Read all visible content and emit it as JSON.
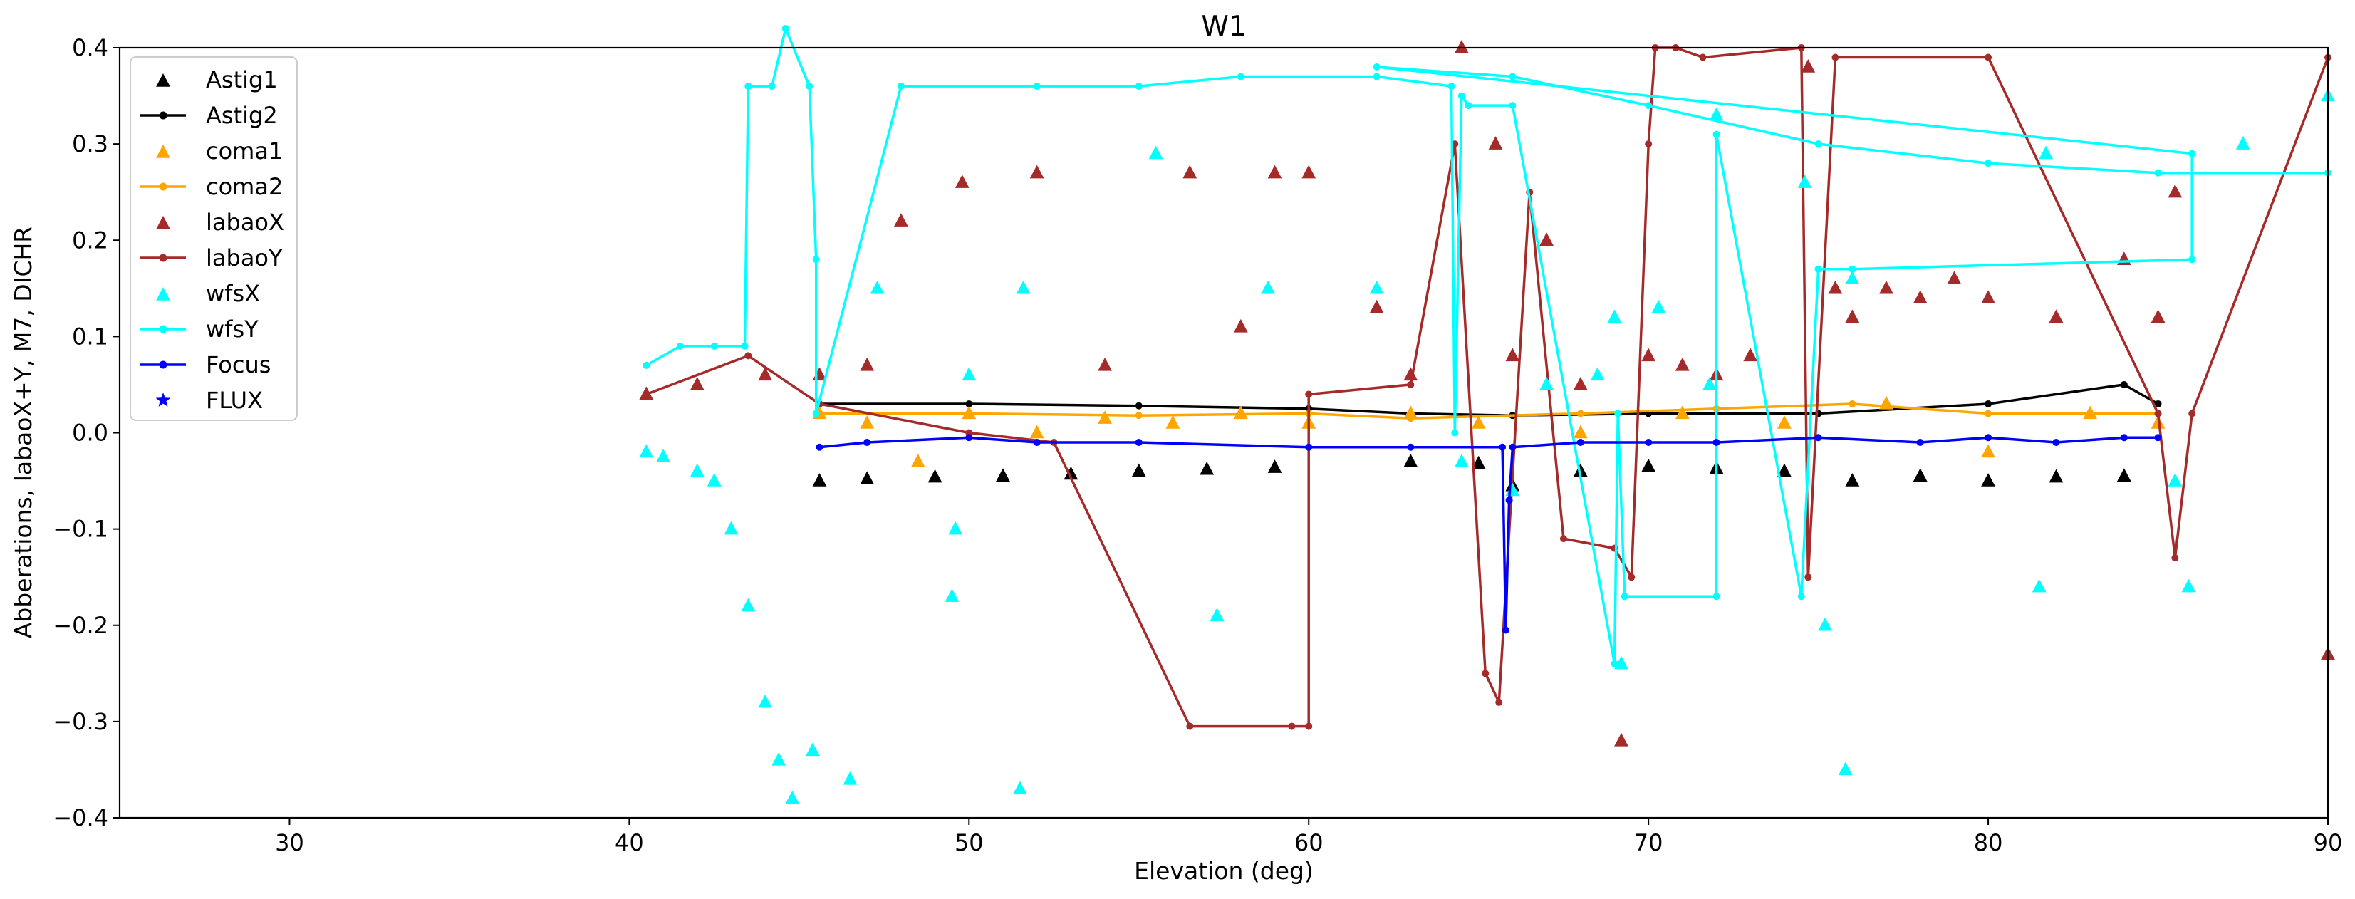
{
  "chart_data": {
    "type": "line",
    "title": "W1",
    "xlabel": "Elevation (deg)",
    "ylabel": "Abberations, labaoX+Y, M7, DICHR",
    "xlim": [
      25,
      90
    ],
    "ylim": [
      -0.4,
      0.4
    ],
    "x_ticks": [
      30,
      40,
      50,
      60,
      70,
      80,
      90
    ],
    "y_ticks": [
      0.4,
      0.3,
      0.2,
      0.1,
      0.0,
      -0.1,
      -0.2,
      -0.3,
      -0.4
    ],
    "x_tick_labels": [
      "30",
      "40",
      "50",
      "60",
      "70",
      "80",
      "90"
    ],
    "y_tick_labels": [
      "0.4",
      "0.3",
      "0.2",
      "0.1",
      "0.0",
      "−0.1",
      "−0.2",
      "−0.3",
      "−0.4"
    ],
    "legend_position": "top-left",
    "series": [
      {
        "name": "Astig1",
        "style": "marker",
        "marker": "triangle",
        "color": "#000000",
        "x": [
          45.6,
          47,
          49,
          51,
          53,
          55,
          57,
          59,
          63,
          65,
          66,
          68,
          70,
          72,
          74,
          76,
          78,
          80,
          82,
          84
        ],
        "y": [
          -0.05,
          -0.048,
          -0.046,
          -0.045,
          -0.043,
          -0.04,
          -0.038,
          -0.036,
          -0.03,
          -0.032,
          -0.055,
          -0.04,
          -0.035,
          -0.037,
          -0.04,
          -0.05,
          -0.045,
          -0.05,
          -0.046,
          -0.045
        ]
      },
      {
        "name": "Astig2",
        "style": "line",
        "marker": "dot",
        "color": "#000000",
        "x": [
          45.6,
          50,
          55,
          60,
          63,
          66,
          70,
          75,
          80,
          84,
          85
        ],
        "y": [
          0.03,
          0.03,
          0.028,
          0.025,
          0.02,
          0.018,
          0.02,
          0.02,
          0.03,
          0.05,
          0.03
        ]
      },
      {
        "name": "coma1",
        "style": "marker",
        "marker": "triangle",
        "color": "#FFA500",
        "x": [
          45.6,
          47,
          48.5,
          50,
          52,
          54,
          56,
          58,
          60,
          63,
          65,
          68,
          71,
          74,
          77,
          80,
          83,
          85
        ],
        "y": [
          0.02,
          0.01,
          -0.03,
          0.02,
          0.0,
          0.015,
          0.01,
          0.02,
          0.01,
          0.02,
          0.01,
          0.0,
          0.02,
          0.01,
          0.03,
          -0.02,
          0.02,
          0.01
        ]
      },
      {
        "name": "coma2",
        "style": "line",
        "marker": "dot",
        "color": "#FFA500",
        "x": [
          45.6,
          50,
          55,
          60,
          63,
          68,
          72,
          76,
          80,
          85
        ],
        "y": [
          0.02,
          0.02,
          0.018,
          0.02,
          0.015,
          0.02,
          0.025,
          0.03,
          0.02,
          0.02
        ]
      },
      {
        "name": "labaoX",
        "style": "marker",
        "marker": "triangle",
        "color": "#A52A2A",
        "x": [
          40.5,
          42,
          44,
          45.6,
          47,
          48,
          49.8,
          52,
          54,
          56.5,
          58,
          59,
          60,
          62,
          63,
          64.5,
          65.5,
          66,
          67,
          68,
          69.2,
          70,
          71,
          72,
          73,
          74.7,
          75.5,
          76,
          77,
          78,
          79,
          80,
          82,
          84,
          85,
          85.5,
          90
        ],
        "y": [
          0.04,
          0.05,
          0.06,
          0.06,
          0.07,
          0.22,
          0.26,
          0.27,
          0.07,
          0.27,
          0.11,
          0.27,
          0.27,
          0.13,
          0.06,
          0.4,
          0.3,
          0.08,
          0.2,
          0.05,
          -0.32,
          0.08,
          0.07,
          0.06,
          0.08,
          0.38,
          0.15,
          0.12,
          0.15,
          0.14,
          0.16,
          0.14,
          0.12,
          0.18,
          0.12,
          0.25,
          -0.23
        ]
      },
      {
        "name": "labaoY",
        "style": "line",
        "marker": "dot",
        "color": "#A52A2A",
        "x": [
          40.5,
          43.5,
          45.6,
          50,
          52.5,
          56.5,
          59.5,
          60,
          60,
          63,
          64.3,
          65.2,
          65.6,
          66.5,
          67.5,
          69,
          69.5,
          70,
          70.2,
          70.8,
          71.6,
          74.5,
          74.7,
          75.5,
          80,
          85,
          85.5,
          86,
          90
        ],
        "y": [
          0.04,
          0.08,
          0.03,
          0.0,
          -0.01,
          -0.305,
          -0.305,
          -0.305,
          0.04,
          0.05,
          0.3,
          -0.25,
          -0.28,
          0.25,
          -0.11,
          -0.12,
          -0.15,
          0.3,
          0.4,
          0.4,
          0.39,
          0.4,
          -0.15,
          0.39,
          0.39,
          0.02,
          -0.13,
          0.02,
          0.39
        ]
      },
      {
        "name": "wfsX",
        "style": "marker",
        "marker": "triangle",
        "color": "#00FFFF",
        "x": [
          40.5,
          41,
          42,
          42.5,
          43,
          43.5,
          44,
          44.4,
          44.8,
          45.4,
          46.5,
          47.3,
          49.5,
          49.6,
          50,
          51.5,
          51.6,
          55.5,
          57.3,
          58.8,
          62,
          64.5,
          66,
          67,
          68.5,
          69,
          69.2,
          70.3,
          71.8,
          72,
          74.6,
          75.2,
          75.8,
          76,
          81.5,
          81.7,
          85.5,
          85.9,
          87.5,
          90
        ],
        "y": [
          -0.02,
          -0.025,
          -0.04,
          -0.05,
          -0.1,
          -0.18,
          -0.28,
          -0.34,
          -0.38,
          -0.33,
          -0.36,
          0.15,
          -0.17,
          -0.1,
          0.06,
          -0.37,
          0.15,
          0.29,
          -0.19,
          0.15,
          0.15,
          -0.03,
          -0.06,
          0.05,
          0.06,
          0.12,
          -0.24,
          0.13,
          0.05,
          0.33,
          0.26,
          -0.2,
          -0.35,
          0.16,
          -0.16,
          0.29,
          -0.05,
          -0.16,
          0.3,
          0.35
        ]
      },
      {
        "name": "wfsY",
        "style": "line",
        "marker": "dot",
        "color": "#00FFFF",
        "x": [
          40.5,
          41.5,
          42.5,
          43.4,
          43.5,
          44.2,
          44.6,
          45.3,
          45.5,
          45.5,
          48,
          52,
          55,
          58,
          62,
          64.2,
          64.3,
          64.5,
          64.7,
          66,
          69,
          69.1,
          69.3,
          72,
          72,
          74.5,
          75,
          75,
          76,
          86,
          86,
          62,
          66,
          70,
          75,
          80,
          85,
          90
        ],
        "y": [
          0.07,
          0.09,
          0.09,
          0.09,
          0.36,
          0.36,
          0.42,
          0.36,
          0.18,
          0.02,
          0.36,
          0.36,
          0.36,
          0.37,
          0.37,
          0.36,
          0.0,
          0.35,
          0.34,
          0.34,
          -0.24,
          0.02,
          -0.17,
          -0.17,
          0.31,
          -0.17,
          0.17,
          0.17,
          0.17,
          0.18,
          0.29,
          0.38,
          0.37,
          0.34,
          0.3,
          0.28,
          0.27,
          0.27
        ]
      },
      {
        "name": "Focus",
        "style": "line",
        "marker": "dot",
        "color": "#0000FF",
        "x": [
          45.6,
          47,
          50,
          52,
          55,
          60,
          63,
          65.7,
          65.8,
          65.9,
          66,
          68,
          70,
          72,
          75,
          78,
          80,
          82,
          84,
          85
        ],
        "y": [
          -0.015,
          -0.01,
          -0.005,
          -0.01,
          -0.01,
          -0.015,
          -0.015,
          -0.015,
          -0.205,
          -0.07,
          -0.015,
          -0.01,
          -0.01,
          -0.01,
          -0.005,
          -0.01,
          -0.005,
          -0.01,
          -0.005,
          -0.005
        ]
      },
      {
        "name": "FLUX",
        "style": "marker",
        "marker": "star",
        "color": "#0000FF",
        "x": [],
        "y": []
      }
    ]
  }
}
